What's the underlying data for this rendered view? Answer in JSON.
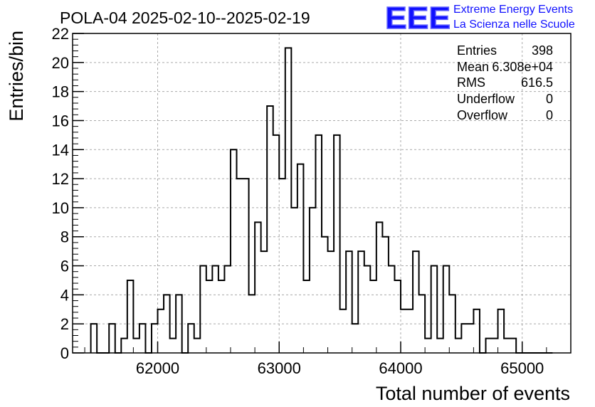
{
  "chart_data": {
    "type": "bar",
    "histogram": true,
    "title": "POLA-04 2025-02-10--2025-02-19",
    "xlabel": "Total number of events",
    "ylabel": "Entries/bin",
    "xlim": [
      61300,
      65400
    ],
    "ylim": [
      0,
      22
    ],
    "bin_width": 50,
    "x_ticks": [
      62000,
      63000,
      64000,
      65000
    ],
    "y_ticks": [
      0,
      2,
      4,
      6,
      8,
      10,
      12,
      14,
      16,
      18,
      20,
      22
    ],
    "grid": true,
    "bins_x": [
      61450,
      61500,
      61550,
      61600,
      61650,
      61700,
      61750,
      61800,
      61850,
      61900,
      61950,
      62000,
      62050,
      62100,
      62150,
      62200,
      62250,
      62300,
      62350,
      62400,
      62450,
      62500,
      62550,
      62600,
      62650,
      62700,
      62750,
      62800,
      62850,
      62900,
      62950,
      63000,
      63050,
      63100,
      63150,
      63200,
      63250,
      63300,
      63350,
      63400,
      63450,
      63500,
      63550,
      63600,
      63650,
      63700,
      63750,
      63800,
      63850,
      63900,
      63950,
      64000,
      64050,
      64100,
      64150,
      64200,
      64250,
      64300,
      64350,
      64400,
      64450,
      64500,
      64550,
      64600,
      64650,
      64700,
      64750,
      64800,
      64850,
      64900,
      64950,
      65000,
      65050,
      65100,
      65150,
      65200
    ],
    "bins_y": [
      2,
      0,
      0,
      2,
      0,
      1,
      5,
      1,
      2,
      0,
      2,
      3,
      4,
      1,
      4,
      0,
      2,
      1,
      6,
      5,
      6,
      5,
      6,
      14,
      12,
      12,
      4,
      9,
      7,
      17,
      15,
      12,
      21,
      10,
      13,
      5,
      10,
      15,
      8,
      7,
      15,
      3,
      7,
      2,
      7,
      6,
      5,
      9,
      8,
      6,
      5,
      3,
      3,
      7,
      4,
      1,
      6,
      1,
      6,
      4,
      1,
      2,
      2,
      3,
      0,
      1,
      1,
      3,
      1,
      1,
      0,
      0,
      0,
      0,
      0,
      0
    ],
    "stats": {
      "entries": {
        "label": "Entries",
        "value": "398"
      },
      "mean": {
        "label": "Mean",
        "value": "6.308e+04"
      },
      "rms": {
        "label": "RMS",
        "value": "616.5"
      },
      "underflow": {
        "label": "Underflow",
        "value": "0"
      },
      "overflow": {
        "label": "Overflow",
        "value": "0"
      }
    }
  },
  "logo": {
    "mark": "EEE",
    "line1": "Extreme Energy Events",
    "line2": "La Scienza nelle Scuole",
    "color": "#1010ff"
  },
  "colors": {
    "histogram_line": "#000000",
    "grid": "#aaaaaa",
    "background": "#ffffff"
  }
}
